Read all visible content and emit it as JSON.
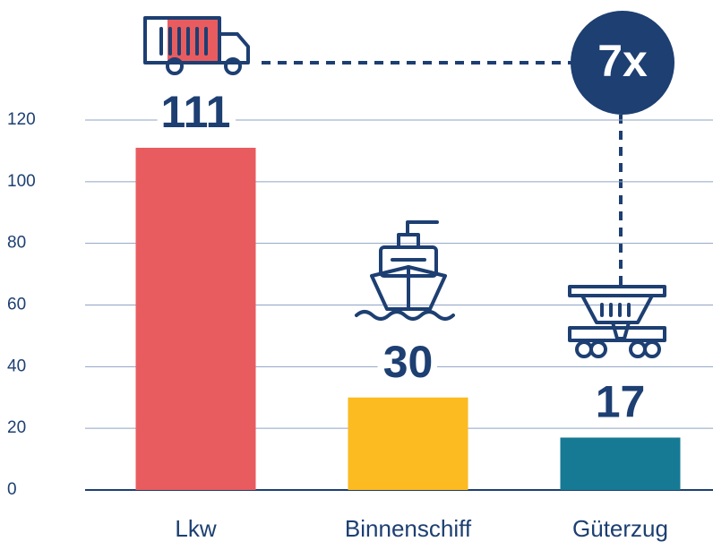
{
  "chart_data": {
    "type": "bar",
    "categories": [
      "Lkw",
      "Binnenschiff",
      "Güterzug"
    ],
    "values": [
      111,
      30,
      17
    ],
    "colors": [
      "#e85c5f",
      "#fbbb21",
      "#167a94"
    ],
    "ylim": [
      0,
      120
    ],
    "yticks": [
      0,
      20,
      40,
      60,
      80,
      100,
      120
    ],
    "grid": true,
    "annotation": "7x"
  }
}
